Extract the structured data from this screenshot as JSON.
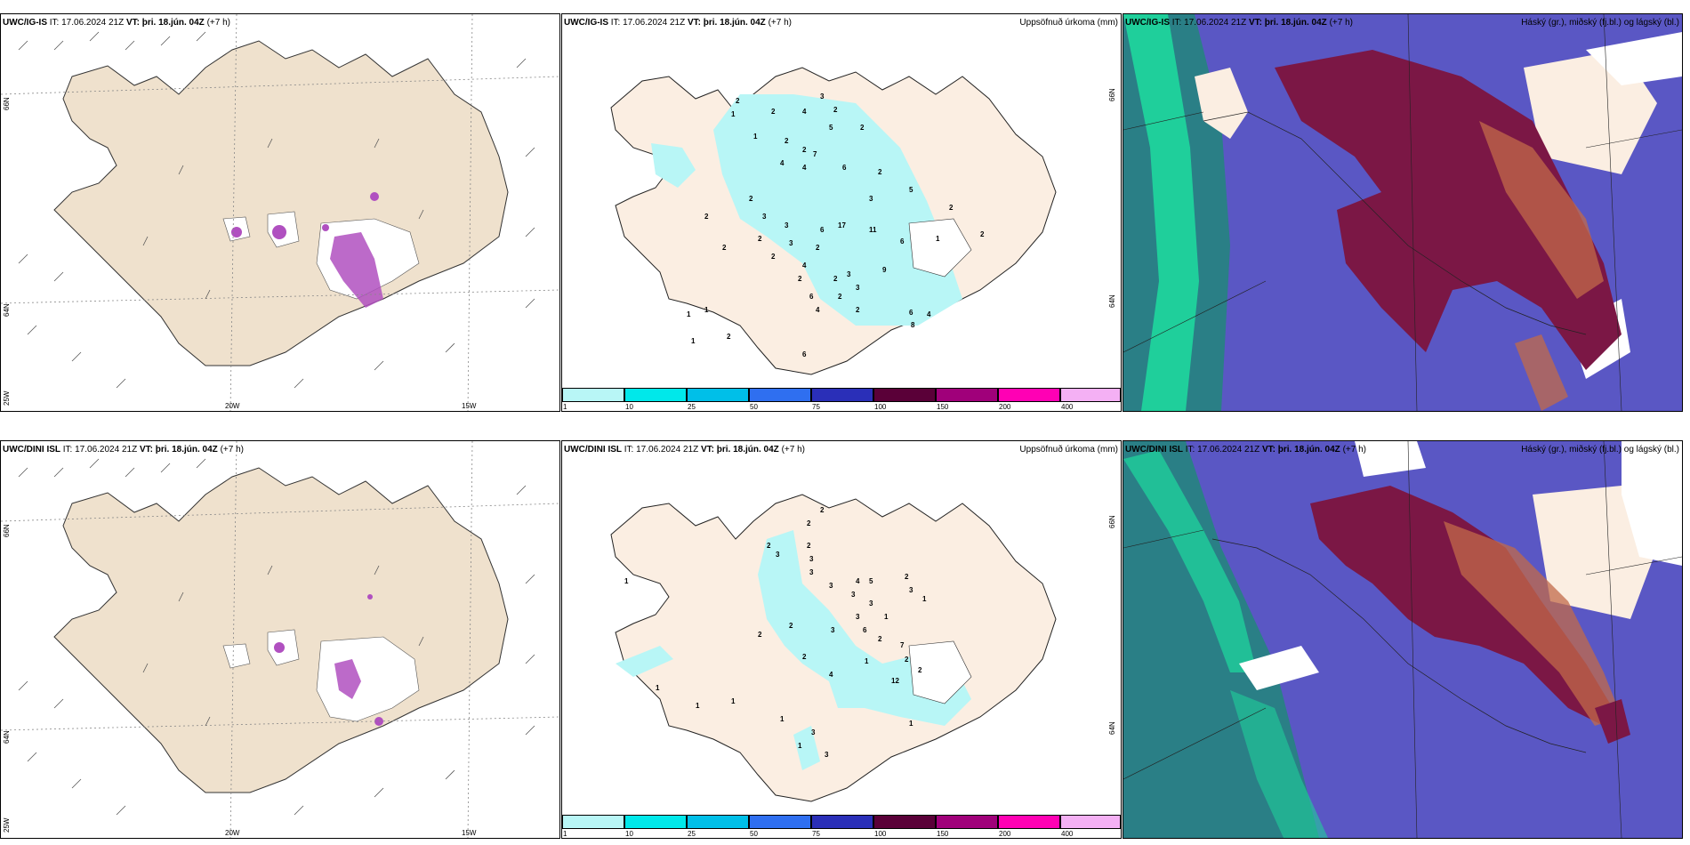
{
  "rows": [
    {
      "model": "UWC/IG-IS",
      "it": "IT: 17.06.2024 21Z",
      "vt_prefix": "VT:",
      "vt": "þri. 18.jún. 04Z",
      "lead": "(+7 h)"
    },
    {
      "model": "UWC/DINI ISL",
      "it": "IT: 17.06.2024 21Z",
      "vt_prefix": "VT:",
      "vt": "þri. 18.jún. 04Z",
      "lead": "(+7 h)"
    }
  ],
  "precip_title": "Uppsöfnuð úrkoma (mm)",
  "cloud_title": "Háský (gr.), miðský (fj.bl.) og lágský (bl.)",
  "axis_labels": {
    "lat_66": "66N",
    "lat_64": "64N",
    "lon_20": "20W",
    "lon_15": "15W",
    "lon_25": "25W"
  },
  "colorbar": {
    "ticks": [
      "1",
      "10",
      "25",
      "50",
      "75",
      "100",
      "150",
      "200",
      "400"
    ],
    "colors": [
      "#b8f6f6",
      "#00e8ea",
      "#00bfe8",
      "#2f6ff0",
      "#2a2fb8",
      "#5a0038",
      "#a0007a",
      "#ff00b4",
      "#f4b0f4"
    ]
  },
  "precip_values_top": [
    "2",
    "1",
    "2",
    "4",
    "2",
    "3",
    "2",
    "1",
    "4",
    "5",
    "2",
    "2",
    "4",
    "7",
    "6",
    "2",
    "2",
    "3",
    "3",
    "5",
    "2",
    "2",
    "2",
    "2",
    "3",
    "3",
    "2",
    "4",
    "6",
    "17",
    "11",
    "6",
    "1",
    "2",
    "3",
    "2",
    "2",
    "6",
    "2",
    "9",
    "2",
    "3",
    "4",
    "2",
    "4",
    "6",
    "8",
    "1",
    "1",
    "1",
    "2",
    "6"
  ],
  "precip_values_bottom": [
    "2",
    "2",
    "2",
    "3",
    "2",
    "3",
    "3",
    "3",
    "4",
    "5",
    "2",
    "3",
    "3",
    "3",
    "1",
    "1",
    "2",
    "2",
    "2",
    "3",
    "3",
    "6",
    "2",
    "7",
    "2",
    "2",
    "4",
    "1",
    "12",
    "1",
    "1",
    "1",
    "1",
    "3",
    "1",
    "1",
    "1",
    "3"
  ],
  "colors": {
    "land": "#efe1cd",
    "land_pale": "#fbeee2",
    "cloud_high": "#5a57c4",
    "cloud_mid": "#7b1745",
    "cloud_low": "#2a7f86",
    "cloud_green": "#1fcf9b",
    "purple": "#a040b0"
  }
}
